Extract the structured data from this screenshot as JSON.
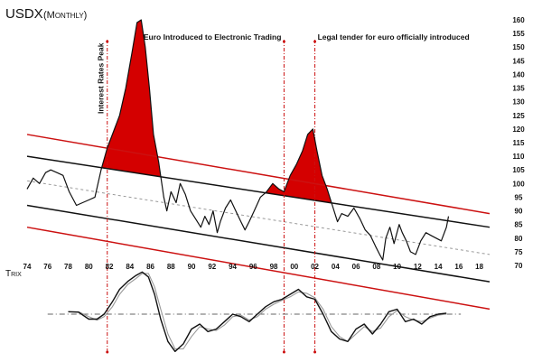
{
  "chart_data": [
    {
      "type": "line",
      "title": "USDX",
      "subtitle": "(Monthly)",
      "x_tick_labels": [
        "74",
        "76",
        "78",
        "80",
        "82",
        "84",
        "86",
        "88",
        "90",
        "92",
        "94",
        "96",
        "98",
        "00",
        "02",
        "04",
        "06",
        "08",
        "10",
        "12",
        "14",
        "16",
        "18"
      ],
      "x_range": [
        1974,
        2019
      ],
      "y_ticks": [
        70,
        75,
        80,
        85,
        90,
        95,
        100,
        105,
        110,
        115,
        120,
        125,
        130,
        135,
        140,
        145,
        150,
        155,
        160
      ],
      "ylim": [
        70,
        160
      ],
      "y_axis_side": "right",
      "grid": false,
      "legend": "none",
      "series": [
        {
          "values_x": [
            1974.0,
            1974.6,
            1975.2,
            1975.8,
            1976.3,
            1976.9,
            1977.5,
            1978.1,
            1978.8,
            1979.4,
            1980.0,
            1980.6,
            1981.2,
            1981.8,
            1982.4,
            1983.0,
            1983.6,
            1984.2,
            1984.7,
            1985.1,
            1985.5,
            1985.9,
            1986.3,
            1986.8,
            1987.3,
            1987.6,
            1988.0,
            1988.5,
            1988.9,
            1989.4,
            1989.9,
            1990.4,
            1990.9,
            1991.3,
            1991.7,
            1992.1,
            1992.5,
            1992.8,
            1993.3,
            1993.8,
            1994.3,
            1994.8,
            1995.2,
            1995.6,
            1996.1,
            1996.7,
            1997.3,
            1997.9,
            1998.5,
            1999.0,
            1999.6,
            2000.2,
            2000.8,
            2001.3,
            2001.8,
            2002.2,
            2002.7,
            2003.2,
            2003.7,
            2004.2,
            2004.6,
            2005.2,
            2005.8,
            2006.4,
            2006.9,
            2007.4,
            2007.9,
            2008.3,
            2008.6,
            2008.9,
            2009.3,
            2009.7,
            2010.2,
            2010.5,
            2010.9,
            2011.3,
            2011.8,
            2012.3,
            2012.8,
            2013.3,
            2013.8,
            2014.3,
            2014.8,
            2015.0
          ],
          "values_y": [
            98,
            102,
            100,
            104,
            105,
            104,
            103,
            97,
            92,
            93,
            94,
            95,
            105,
            113,
            119,
            125,
            135,
            148,
            159,
            160,
            150,
            135,
            118,
            108,
            95,
            90,
            97,
            93,
            100,
            96,
            90,
            87,
            84,
            88,
            85,
            90,
            82,
            86,
            91,
            94,
            90,
            86,
            83,
            86,
            90,
            95,
            97,
            100,
            98,
            97,
            103,
            107,
            112,
            118,
            120,
            112,
            103,
            98,
            92,
            86,
            89,
            88,
            91,
            87,
            83,
            81,
            77,
            74,
            72,
            80,
            84,
            78,
            85,
            82,
            79,
            75,
            74,
            79,
            82,
            81,
            80,
            79,
            84,
            88
          ],
          "color": "#111111"
        }
      ],
      "annotations": [
        {
          "text": "Interest Rates Peak",
          "x": 1981.8
        },
        {
          "text": "Euro Introduced to Electronic Trading",
          "x": 1999.0
        },
        {
          "text": "Legal tender for euro officially introduced",
          "x": 2002.0
        }
      ],
      "channel_lines": [
        {
          "color": "#111111",
          "from": [
            1974,
            110
          ],
          "to": [
            2019,
            84
          ]
        },
        {
          "color": "#111111",
          "from": [
            1974,
            92
          ],
          "to": [
            2019,
            64
          ]
        },
        {
          "color": "#cc1111",
          "from": [
            1974,
            118
          ],
          "to": [
            2019,
            89
          ]
        },
        {
          "color": "#cc1111",
          "from": [
            1974,
            84
          ],
          "to": [
            2019,
            54
          ]
        }
      ],
      "midline": {
        "color": "#999999",
        "style": "dashed",
        "from": [
          1974,
          101
        ],
        "to": [
          2019,
          74
        ]
      },
      "fill_above_channel_color": "#d40000",
      "vertical_markers_color": "#cc1111",
      "vertical_markers_style": "dash-dot"
    },
    {
      "type": "line",
      "title": "Trix",
      "x_range": [
        1974,
        2019
      ],
      "ylim": [
        -1,
        1
      ],
      "y_ticks": [],
      "grid": false,
      "legend": "none",
      "zero_line": {
        "color": "#333333",
        "style": "dash-dot"
      },
      "series": [
        {
          "values_x": [
            1978.0,
            1979.0,
            1980.0,
            1980.8,
            1981.5,
            1982.3,
            1983.0,
            1983.8,
            1984.6,
            1985.2,
            1985.8,
            1986.4,
            1987.0,
            1987.7,
            1988.4,
            1989.2,
            1990.0,
            1990.8,
            1991.6,
            1992.4,
            1993.2,
            1994.0,
            1994.8,
            1995.6,
            1996.4,
            1997.2,
            1998.0,
            1998.8,
            1999.6,
            2000.4,
            2001.2,
            2002.0,
            2002.8,
            2003.6,
            2004.4,
            2005.2,
            2006.0,
            2006.8,
            2007.6,
            2008.4,
            2009.2,
            2010.0,
            2010.8,
            2011.6,
            2012.4,
            2013.2,
            2014.0,
            2014.8
          ],
          "values_y": [
            0.05,
            0.04,
            -0.1,
            -0.1,
            0.0,
            0.25,
            0.5,
            0.66,
            0.78,
            0.85,
            0.75,
            0.4,
            -0.1,
            -0.55,
            -0.75,
            -0.6,
            -0.3,
            -0.2,
            -0.35,
            -0.3,
            -0.15,
            0.0,
            -0.05,
            -0.15,
            0.0,
            0.15,
            0.25,
            0.3,
            0.4,
            0.5,
            0.35,
            0.3,
            0.0,
            -0.35,
            -0.5,
            -0.55,
            -0.3,
            -0.2,
            -0.4,
            -0.2,
            0.05,
            0.1,
            -0.15,
            -0.1,
            -0.2,
            -0.05,
            0.0,
            0.02
          ],
          "color": "#111111"
        },
        {
          "values_x": [
            1978.0,
            1979.0,
            1980.0,
            1980.8,
            1981.5,
            1982.3,
            1983.0,
            1983.8,
            1984.6,
            1985.2,
            1985.8,
            1986.4,
            1987.0,
            1987.7,
            1988.4,
            1989.2,
            1990.0,
            1990.8,
            1991.6,
            1992.4,
            1993.2,
            1994.0,
            1994.8,
            1995.6,
            1996.4,
            1997.2,
            1998.0,
            1998.8,
            1999.6,
            2000.4,
            2001.2,
            2002.0,
            2002.8,
            2003.6,
            2004.4,
            2005.2,
            2006.0,
            2006.8,
            2007.6,
            2008.4,
            2009.2,
            2010.0,
            2010.8,
            2011.6,
            2012.4,
            2013.2,
            2014.0,
            2014.8
          ],
          "values_y": [
            0.05,
            0.05,
            -0.05,
            -0.12,
            -0.05,
            0.15,
            0.4,
            0.6,
            0.72,
            0.82,
            0.82,
            0.55,
            0.1,
            -0.4,
            -0.7,
            -0.7,
            -0.45,
            -0.25,
            -0.3,
            -0.33,
            -0.22,
            -0.05,
            -0.02,
            -0.12,
            -0.05,
            0.1,
            0.2,
            0.28,
            0.35,
            0.45,
            0.42,
            0.33,
            0.1,
            -0.25,
            -0.45,
            -0.55,
            -0.4,
            -0.25,
            -0.35,
            -0.28,
            -0.05,
            0.07,
            -0.05,
            -0.12,
            -0.15,
            -0.08,
            -0.02,
            0.0
          ],
          "color": "#999999"
        }
      ]
    }
  ]
}
